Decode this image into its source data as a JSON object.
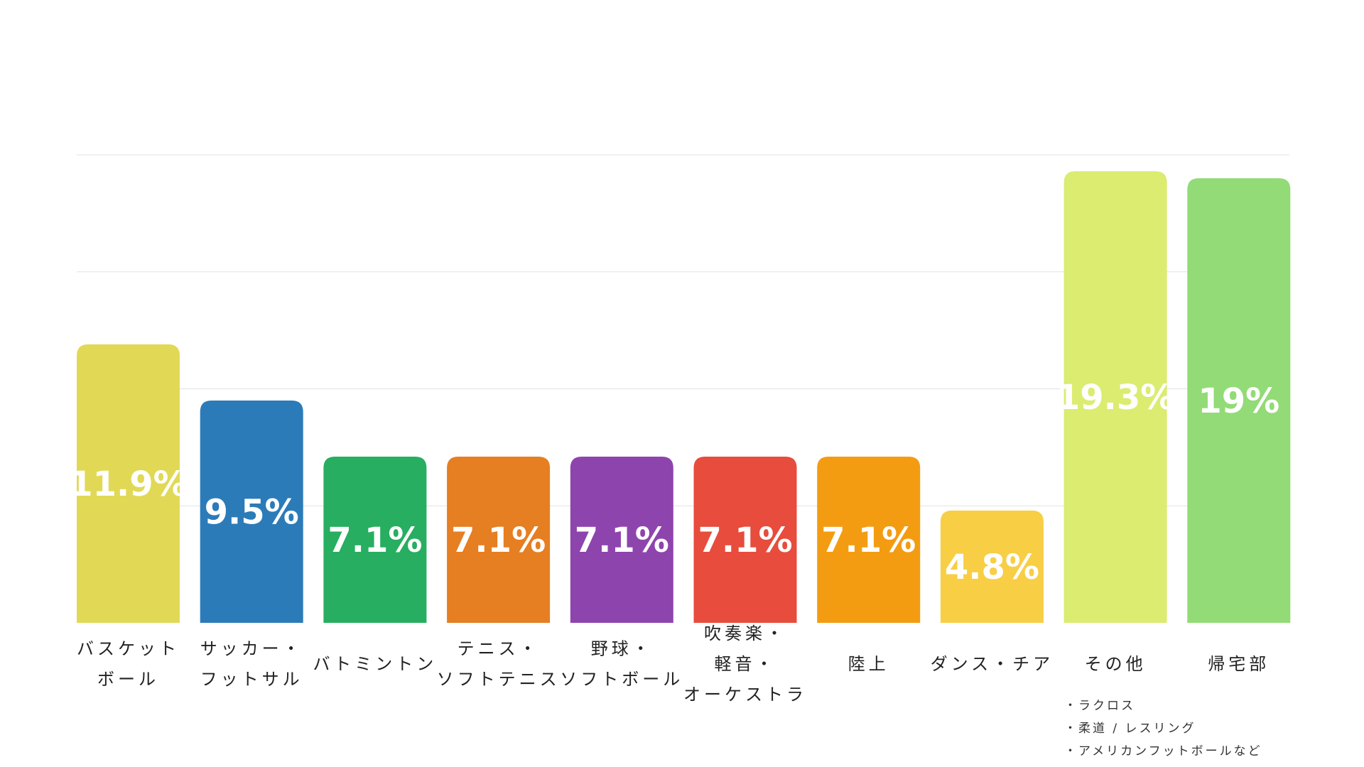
{
  "chart_data": {
    "type": "bar",
    "title": "",
    "xlabel": "",
    "ylabel": "",
    "ylim": [
      0,
      20
    ],
    "grid": true,
    "categories": [
      [
        "バスケット",
        "ボール"
      ],
      [
        "サッカー・",
        "フットサル"
      ],
      [
        "バトミントン"
      ],
      [
        "テニス・",
        "ソフトテニス"
      ],
      [
        "野球・",
        "ソフトボール"
      ],
      [
        "吹奏楽・",
        "軽音・",
        "オーケストラ"
      ],
      [
        "陸上"
      ],
      [
        "ダンス・チア"
      ],
      [
        "その他"
      ],
      [
        "帰宅部"
      ]
    ],
    "values": [
      11.9,
      9.5,
      7.1,
      7.1,
      7.1,
      7.1,
      7.1,
      4.8,
      19.3,
      19
    ],
    "value_labels": [
      "11.9%",
      "9.5%",
      "7.1%",
      "7.1%",
      "7.1%",
      "7.1%",
      "7.1%",
      "4.8%",
      "19.3%",
      "19%"
    ],
    "colors": [
      "#E1D955",
      "#2B7BB9",
      "#27AE60",
      "#E67E22",
      "#8E44AD",
      "#E74C3C",
      "#F39C12",
      "#F8CE45",
      "#DBEC70",
      "#92DB76"
    ],
    "note": [
      "・ラクロス",
      "・柔道 / レスリング",
      "・アメリカンフットボールなど"
    ]
  }
}
